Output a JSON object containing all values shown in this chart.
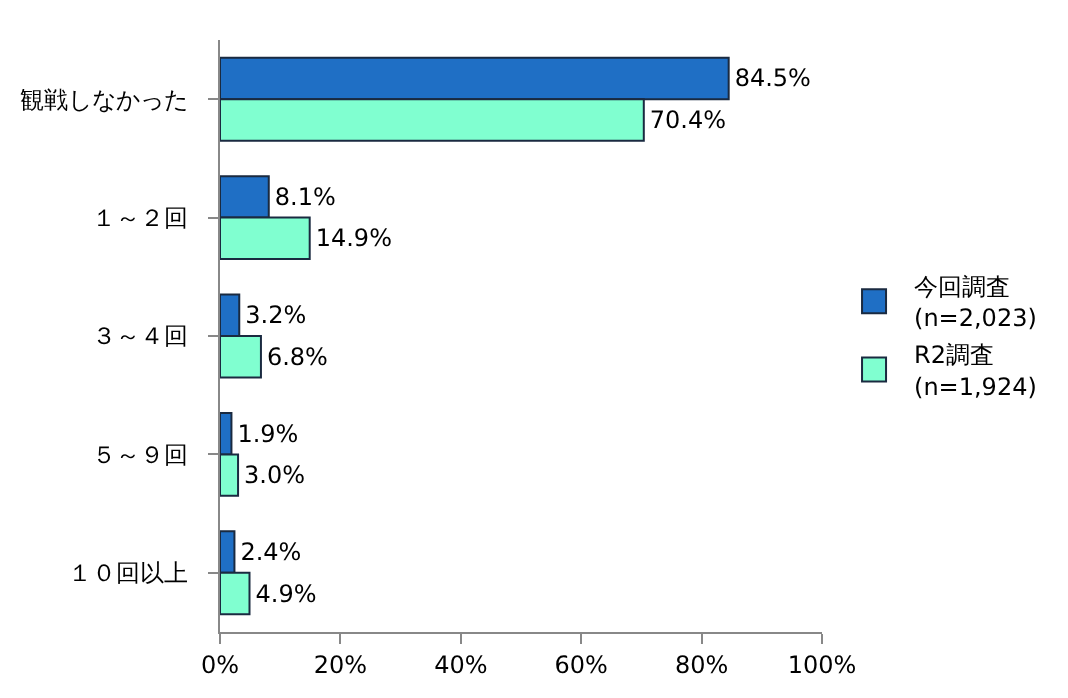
{
  "chart_data": {
    "type": "bar",
    "orientation": "horizontal",
    "categories": [
      "観戦しなかった",
      "１～２回",
      "３～４回",
      "５～９回",
      "１０回以上"
    ],
    "series": [
      {
        "name": "今回調査\n(n=2,023)",
        "color": "#1f6fc5",
        "values": [
          84.5,
          8.1,
          3.2,
          1.9,
          2.4
        ],
        "value_labels": [
          "84.5%",
          "8.1%",
          "3.2%",
          "1.9%",
          "2.4%"
        ]
      },
      {
        "name": "R2調査\n(n=1,924)",
        "color": "#80ffd0",
        "values": [
          70.4,
          14.9,
          6.8,
          3.0,
          4.9
        ],
        "value_labels": [
          "70.4%",
          "14.9%",
          "6.8%",
          "3.0%",
          "4.9%"
        ]
      }
    ],
    "xlim": [
      0,
      100
    ],
    "xticks": [
      {
        "value": 0,
        "label": "0%"
      },
      {
        "value": 20,
        "label": "20%"
      },
      {
        "value": 40,
        "label": "40%"
      },
      {
        "value": 60,
        "label": "60%"
      },
      {
        "value": 80,
        "label": "80%"
      },
      {
        "value": 100,
        "label": "100%"
      }
    ],
    "grid": false,
    "legend": "right"
  }
}
